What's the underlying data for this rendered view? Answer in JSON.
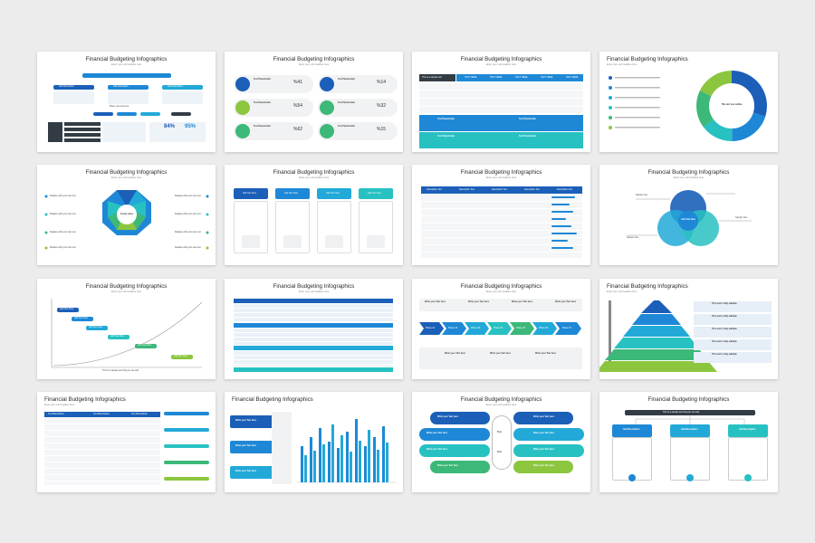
{
  "slide_title": "Financial Budgeting Infographics",
  "slide_subtitle": "Enter your sub headline here",
  "colors": {
    "navy": "#1b5fb8",
    "blue": "#1e88d6",
    "sky": "#22a9d8",
    "teal": "#28c1c2",
    "green": "#3cb878",
    "lime": "#8cc63f",
    "dark": "#333c44"
  },
  "texts": {
    "add_description": "Add Description",
    "place_text": "Place your text here",
    "text_placeholder": "Text Placeholder",
    "this_is_sample": "This is a sample text",
    "text_here": "TEXT HERE",
    "description_text": "Description Text",
    "add_text_here": "Add Text Here",
    "replace_text": "Replace with your own text",
    "create_value": "Create value",
    "sample_text": "Sample Text",
    "write_text": "Write your Text here",
    "add_text_here_center": "Add Text Here",
    "text_only": "Text",
    "add_description_short": "Add Description",
    "pct_84": "84%",
    "pct_95": "95%",
    "pct_41": "%41",
    "pct_14": "%14",
    "pct_54": "%54",
    "pct_32": "%32",
    "pct_62": "%62",
    "pct_15": "%15",
    "text_outline": "This text can outline",
    "phase_01": "Phase 01",
    "phase_02": "Phase 02",
    "phase_03": "Phase 03",
    "phase_04": "Phase 04",
    "phase_05": "Phase 05",
    "phase_06": "Phase 06",
    "phase_07": "Phase 07",
    "edit_text": "This text is fully editable",
    "sample_long": "This is a sample text that you can edit",
    "top_banner": "This is a sample text that you can edit"
  }
}
